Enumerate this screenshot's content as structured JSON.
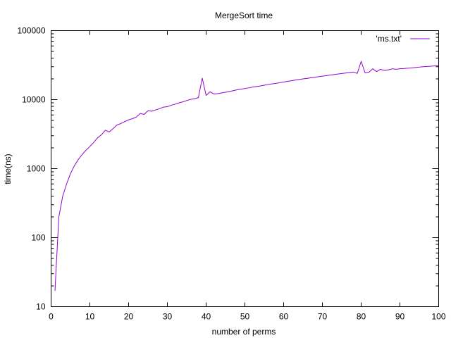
{
  "chart_data": {
    "type": "line",
    "title": "MergeSort time",
    "xlabel": "number of perms",
    "ylabel": "time(ns)",
    "xlim": [
      0,
      100
    ],
    "ylim": [
      10,
      100000
    ],
    "yscale": "log",
    "grid": false,
    "legend_position": "top-right",
    "x_ticks": [
      0,
      10,
      20,
      30,
      40,
      50,
      60,
      70,
      80,
      90,
      100
    ],
    "x_tick_labels": [
      "0",
      "10",
      "20",
      "30",
      "40",
      "50",
      "60",
      "70",
      "80",
      "90",
      "100"
    ],
    "y_ticks": [
      10,
      100,
      1000,
      10000,
      100000
    ],
    "y_tick_labels": [
      "10",
      "100",
      "1000",
      "10000",
      "100000"
    ],
    "series": [
      {
        "name": "'ms.txt'",
        "color": "#9400d3",
        "x": [
          1,
          2,
          3,
          4,
          5,
          6,
          7,
          8,
          9,
          10,
          11,
          12,
          13,
          14,
          15,
          16,
          17,
          18,
          19,
          20,
          21,
          22,
          23,
          24,
          25,
          26,
          27,
          28,
          29,
          30,
          31,
          32,
          33,
          34,
          35,
          36,
          37,
          38,
          39,
          40,
          41,
          42,
          43,
          44,
          45,
          46,
          47,
          48,
          49,
          50,
          51,
          52,
          53,
          54,
          55,
          56,
          57,
          58,
          59,
          60,
          61,
          62,
          63,
          64,
          65,
          66,
          67,
          68,
          69,
          70,
          71,
          72,
          73,
          74,
          75,
          76,
          77,
          78,
          79,
          80,
          81,
          82,
          83,
          84,
          85,
          86,
          87,
          88,
          89,
          90,
          91,
          92,
          93,
          94,
          95,
          96,
          97,
          98,
          99,
          100
        ],
        "y": [
          17,
          200,
          400,
          600,
          850,
          1100,
          1350,
          1600,
          1850,
          2100,
          2400,
          2800,
          3100,
          3600,
          3400,
          3800,
          4300,
          4500,
          4800,
          5100,
          5300,
          5600,
          6300,
          6100,
          6900,
          6800,
          7100,
          7400,
          7800,
          7900,
          8300,
          8600,
          9000,
          9300,
          9700,
          10100,
          10300,
          10700,
          20500,
          11500,
          13000,
          12100,
          12200,
          12500,
          12800,
          13100,
          13500,
          13900,
          14200,
          14500,
          14800,
          15200,
          15500,
          15800,
          16200,
          16600,
          16900,
          17200,
          17600,
          18000,
          18400,
          18800,
          19200,
          19600,
          20000,
          20300,
          20700,
          21100,
          21500,
          21900,
          22300,
          22700,
          23100,
          23500,
          23900,
          24300,
          24700,
          25100,
          24000,
          36000,
          24500,
          25000,
          28000,
          25500,
          27500,
          26500,
          27000,
          28000,
          27500,
          28000,
          28200,
          28500,
          28800,
          29200,
          29600,
          30000,
          30300,
          30500,
          30800,
          31000
        ]
      }
    ]
  }
}
